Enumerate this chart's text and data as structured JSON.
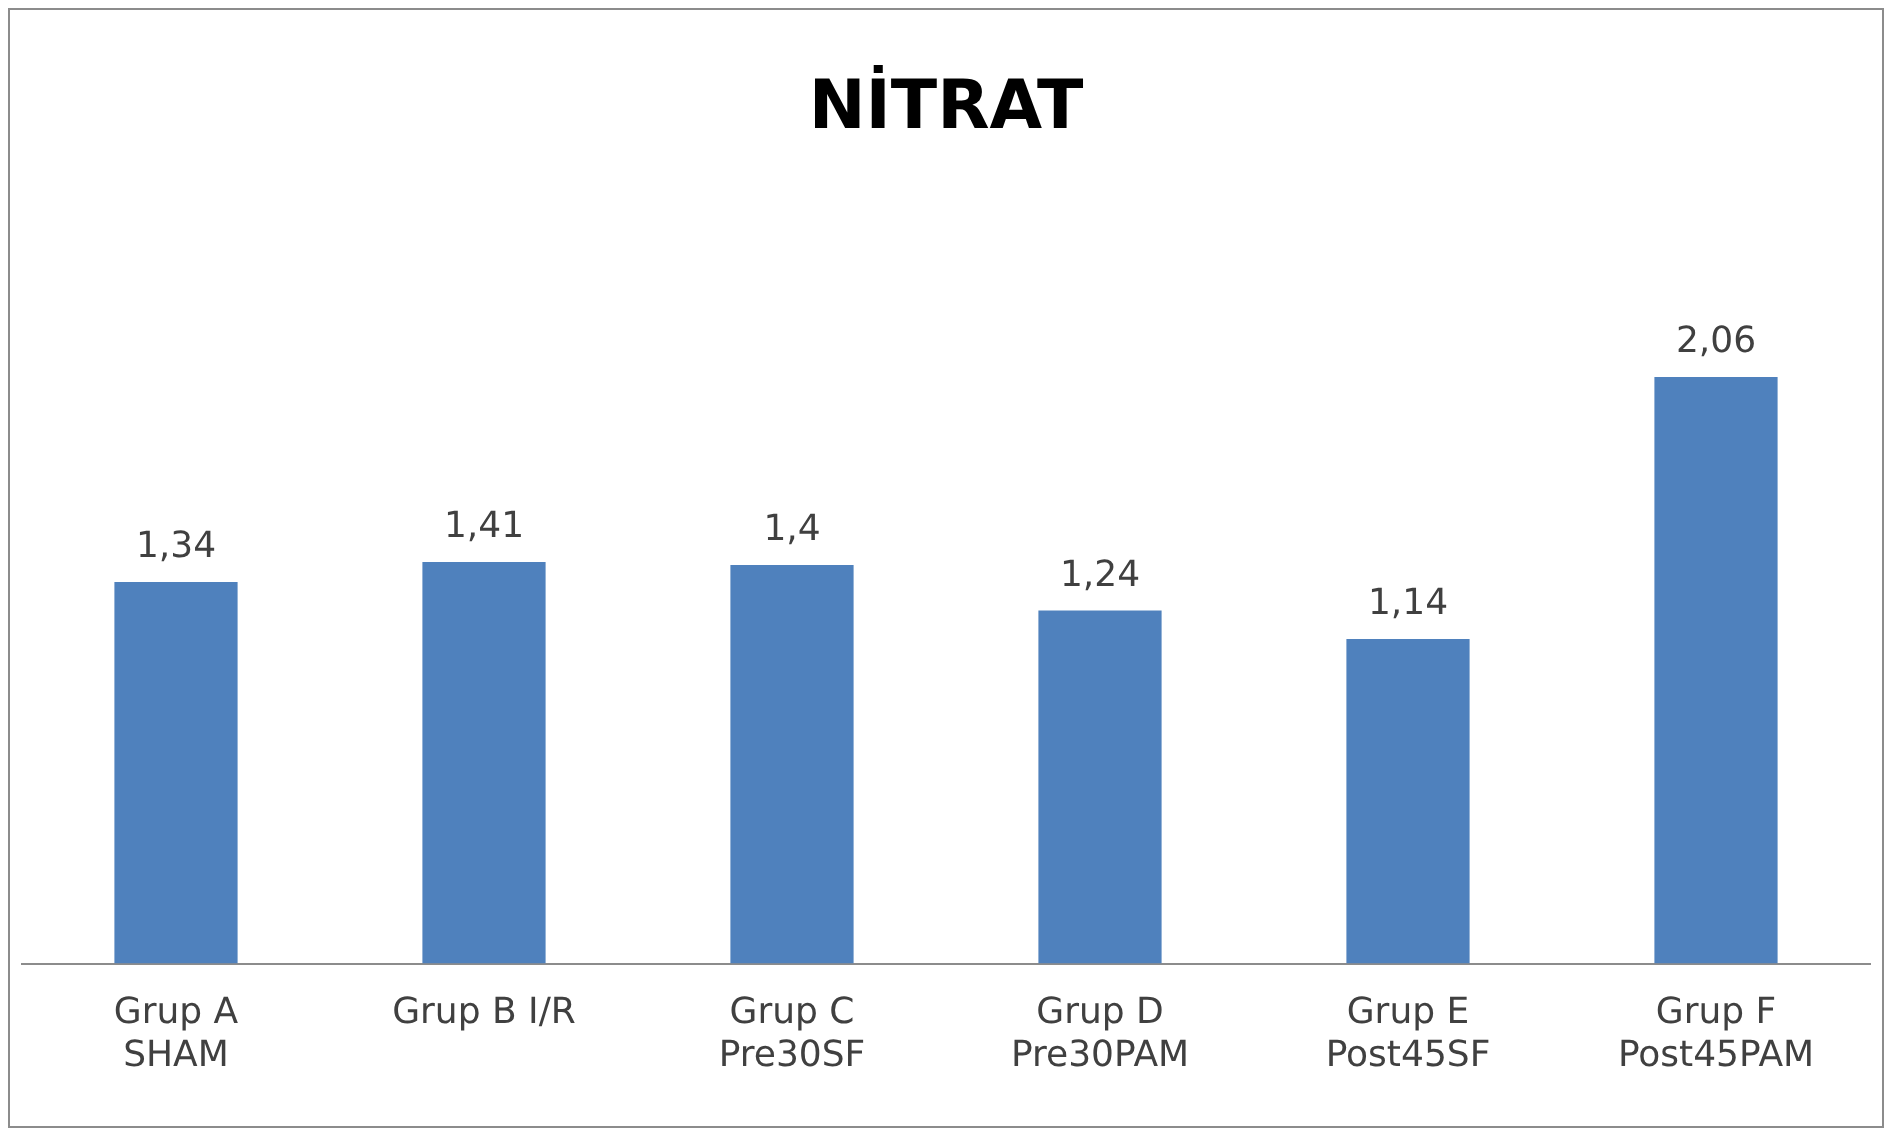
{
  "chart_data": {
    "type": "bar",
    "title": "NİTRAT",
    "categories": [
      "Grup A\nSHAM",
      "Grup B I/R",
      "Grup C\nPre30SF",
      "Grup D\nPre30PAM",
      "Grup E\nPost45SF",
      "Grup F\nPost45PAM"
    ],
    "values": [
      1.34,
      1.41,
      1.4,
      1.24,
      1.14,
      2.06
    ],
    "value_labels": [
      "1,34",
      "1,41",
      "1,4",
      "1,24",
      "1,14",
      "2,06"
    ],
    "color": "#4f81bd",
    "grid": false,
    "legend": false
  }
}
